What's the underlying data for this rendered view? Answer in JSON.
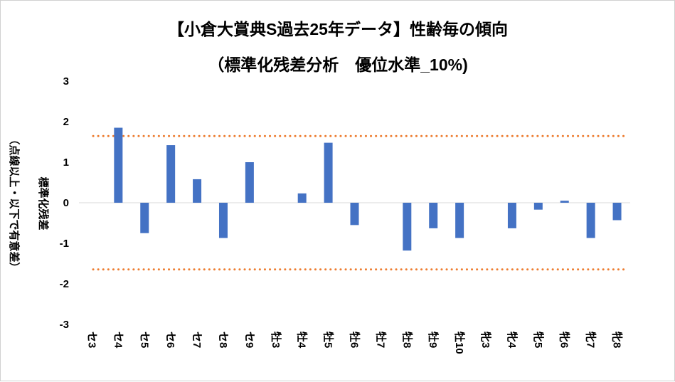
{
  "chart_data": {
    "type": "bar",
    "title": "【小倉大賞典S過去25年データ】性齢毎の傾向",
    "subtitle": "（標準化残差分析　優位水準_10%)",
    "ylabel": "標準化残差",
    "ylabel_note": "（点線以上・以下で有意差）",
    "ylim": [
      -3,
      3
    ],
    "yticks": [
      3,
      2,
      1,
      0,
      -1,
      -2,
      -3
    ],
    "categories": [
      "セ3",
      "セ4",
      "セ5",
      "セ6",
      "セ7",
      "セ8",
      "セ9",
      "牡3",
      "牡4",
      "牡5",
      "牡6",
      "牡7",
      "牡8",
      "牡9",
      "牡10",
      "牝3",
      "牝4",
      "牝5",
      "牝6",
      "牝7",
      "牝8"
    ],
    "values": [
      0,
      1.85,
      -0.75,
      1.42,
      0.58,
      -0.87,
      1.0,
      0,
      0.23,
      1.48,
      -0.55,
      0,
      -1.18,
      -0.63,
      -0.87,
      0,
      -0.63,
      -0.17,
      0.05,
      -0.87,
      -0.43
    ],
    "bar_color": "#4472C4",
    "threshold_lines": [
      1.645,
      -1.645
    ],
    "threshold_color": "#ED7D31",
    "threshold_style": "dotted",
    "grid": false
  }
}
